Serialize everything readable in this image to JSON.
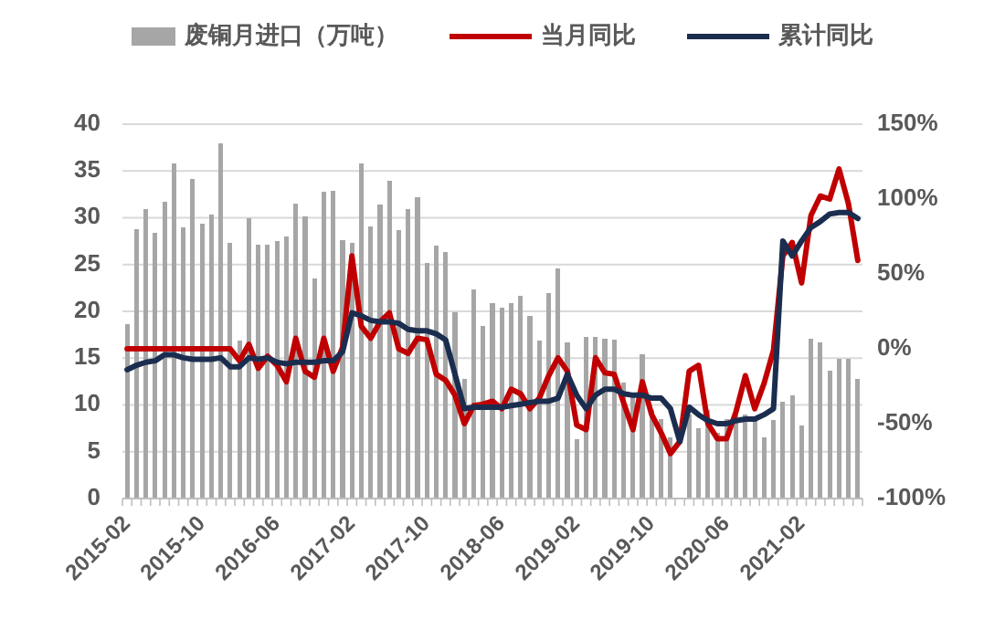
{
  "chart_data": {
    "type": "bar",
    "categories": [
      "2015-02",
      null,
      null,
      null,
      null,
      null,
      null,
      null,
      "2015-10",
      null,
      null,
      null,
      null,
      null,
      null,
      null,
      "2016-06",
      null,
      null,
      null,
      null,
      null,
      null,
      null,
      "2017-02",
      null,
      null,
      null,
      null,
      null,
      null,
      null,
      "2017-10",
      null,
      null,
      null,
      null,
      null,
      null,
      null,
      "2018-06",
      null,
      null,
      null,
      null,
      null,
      null,
      null,
      "2019-02",
      null,
      null,
      null,
      null,
      null,
      null,
      null,
      "2019-10",
      null,
      null,
      null,
      null,
      null,
      null,
      null,
      "2020-06",
      null,
      null,
      null,
      null,
      null,
      null,
      null,
      "2021-02",
      null,
      null,
      null,
      null,
      null,
      null
    ],
    "series": [
      {
        "name": "废铜月进口（万吨）",
        "color": "#a6a6a6",
        "values": [
          18.6,
          28.8,
          30.9,
          28.4,
          31.7,
          35.8,
          29.0,
          34.1,
          29.4,
          30.3,
          38.0,
          27.3,
          16.9,
          30.0,
          27.1,
          27.1,
          27.5,
          28.0,
          31.5,
          30.1,
          23.5,
          32.8,
          32.9,
          27.6,
          27.3,
          35.8,
          29.1,
          31.4,
          34.0,
          28.7,
          30.9,
          32.2,
          25.2,
          27.0,
          26.3,
          19.9,
          12.8,
          22.3,
          18.4,
          20.9,
          20.4,
          20.9,
          21.7,
          19.5,
          16.9,
          22.0,
          24.6,
          16.7,
          6.3,
          17.3,
          17.3,
          17.1,
          17.0,
          12.4,
          11.1,
          15.4,
          9.5,
          8.5,
          6.5,
          null,
          9.0,
          7.5,
          9.5,
          7.0,
          8.5,
          9.0,
          9.0,
          8.5,
          6.5,
          8.4,
          10.3,
          11.0,
          7.8,
          17.1,
          16.7,
          13.7,
          14.9,
          14.9,
          12.8
        ]
      },
      {
        "name": "当月同比",
        "type": "line",
        "axis": "y2",
        "color": "#c00000",
        "values": [
          0,
          0,
          0,
          0,
          0,
          0,
          0,
          0,
          0,
          0,
          0,
          0,
          -8,
          3,
          -13,
          -5,
          -11,
          -22,
          7,
          -15,
          -19,
          7,
          -15,
          1,
          62,
          15,
          7,
          18,
          24,
          0,
          -3,
          7,
          6,
          -17,
          -21,
          -31,
          -50,
          -38,
          -37,
          -35,
          -40,
          -27,
          -30,
          -40,
          -33,
          -18,
          -6,
          -15,
          -51,
          -54,
          -6,
          -16,
          -17,
          -36,
          -54,
          -22,
          -44,
          -56,
          -70,
          -62,
          -15,
          -11,
          -50,
          -60,
          -60,
          -42,
          -18,
          -40,
          -23,
          -1,
          62,
          71,
          44,
          89,
          102,
          100,
          120,
          97,
          59
        ]
      },
      {
        "name": "累计同比",
        "type": "line",
        "axis": "y2",
        "color": "#1b2d4f",
        "values": [
          -14,
          -11,
          -9,
          -8,
          -4,
          -4,
          -6,
          -7,
          -7,
          -7,
          -6,
          -12,
          -12,
          -6,
          -7,
          -6,
          -9,
          -10,
          -9,
          -9,
          -9,
          -8,
          -8,
          -2,
          24,
          22,
          19,
          18,
          18,
          17,
          13,
          12,
          12,
          10,
          6,
          -17,
          -40,
          -39,
          -39,
          -39,
          -39,
          -38,
          -37,
          -36,
          -35,
          -35,
          -33,
          -17,
          -31,
          -40,
          -31,
          -27,
          -27,
          -30,
          -31,
          -31,
          -33,
          -33,
          -40,
          -62,
          -39,
          -44,
          -48,
          -50,
          -50,
          -48,
          -47,
          -47,
          -44,
          -40,
          72,
          62,
          72,
          81,
          85,
          90,
          91,
          91,
          87
        ]
      }
    ],
    "ylim": [
      0,
      40
    ],
    "yticks": [
      0,
      5,
      10,
      15,
      20,
      25,
      30,
      35,
      40
    ],
    "y2lim": [
      -100,
      150
    ],
    "y2ticks": [
      {
        "value": -100,
        "label": "-100%"
      },
      {
        "value": -50,
        "label": "-50%"
      },
      {
        "value": 0,
        "label": "0%"
      },
      {
        "value": 50,
        "label": "50%"
      },
      {
        "value": 100,
        "label": "100%"
      },
      {
        "value": 150,
        "label": "150%"
      }
    ],
    "grid": "y",
    "legend": "top"
  }
}
